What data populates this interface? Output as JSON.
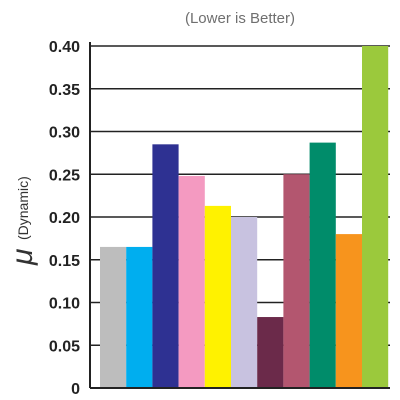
{
  "chart_data": {
    "type": "bar",
    "title": "",
    "subtitle": "(Lower is Better)",
    "ylabel_symbol": "μ",
    "ylabel_text": "(Dynamic)",
    "xlabel": "",
    "ylim": [
      0,
      0.4
    ],
    "yticks": [
      "0",
      "0.05",
      "0.10",
      "0.15",
      "0.20",
      "0.25",
      "0.30",
      "0.35",
      "0.40"
    ],
    "grid": true,
    "legend": "none",
    "values": [
      0.165,
      0.165,
      0.285,
      0.248,
      0.213,
      0.2,
      0.083,
      0.25,
      0.287,
      0.18,
      0.4
    ],
    "colors": [
      "#bdbdbd",
      "#00aeef",
      "#2e3192",
      "#f49ac1",
      "#fff200",
      "#c8c2e0",
      "#6b2a4a",
      "#b3566f",
      "#008c6a",
      "#f7941d",
      "#9bc93c"
    ]
  }
}
